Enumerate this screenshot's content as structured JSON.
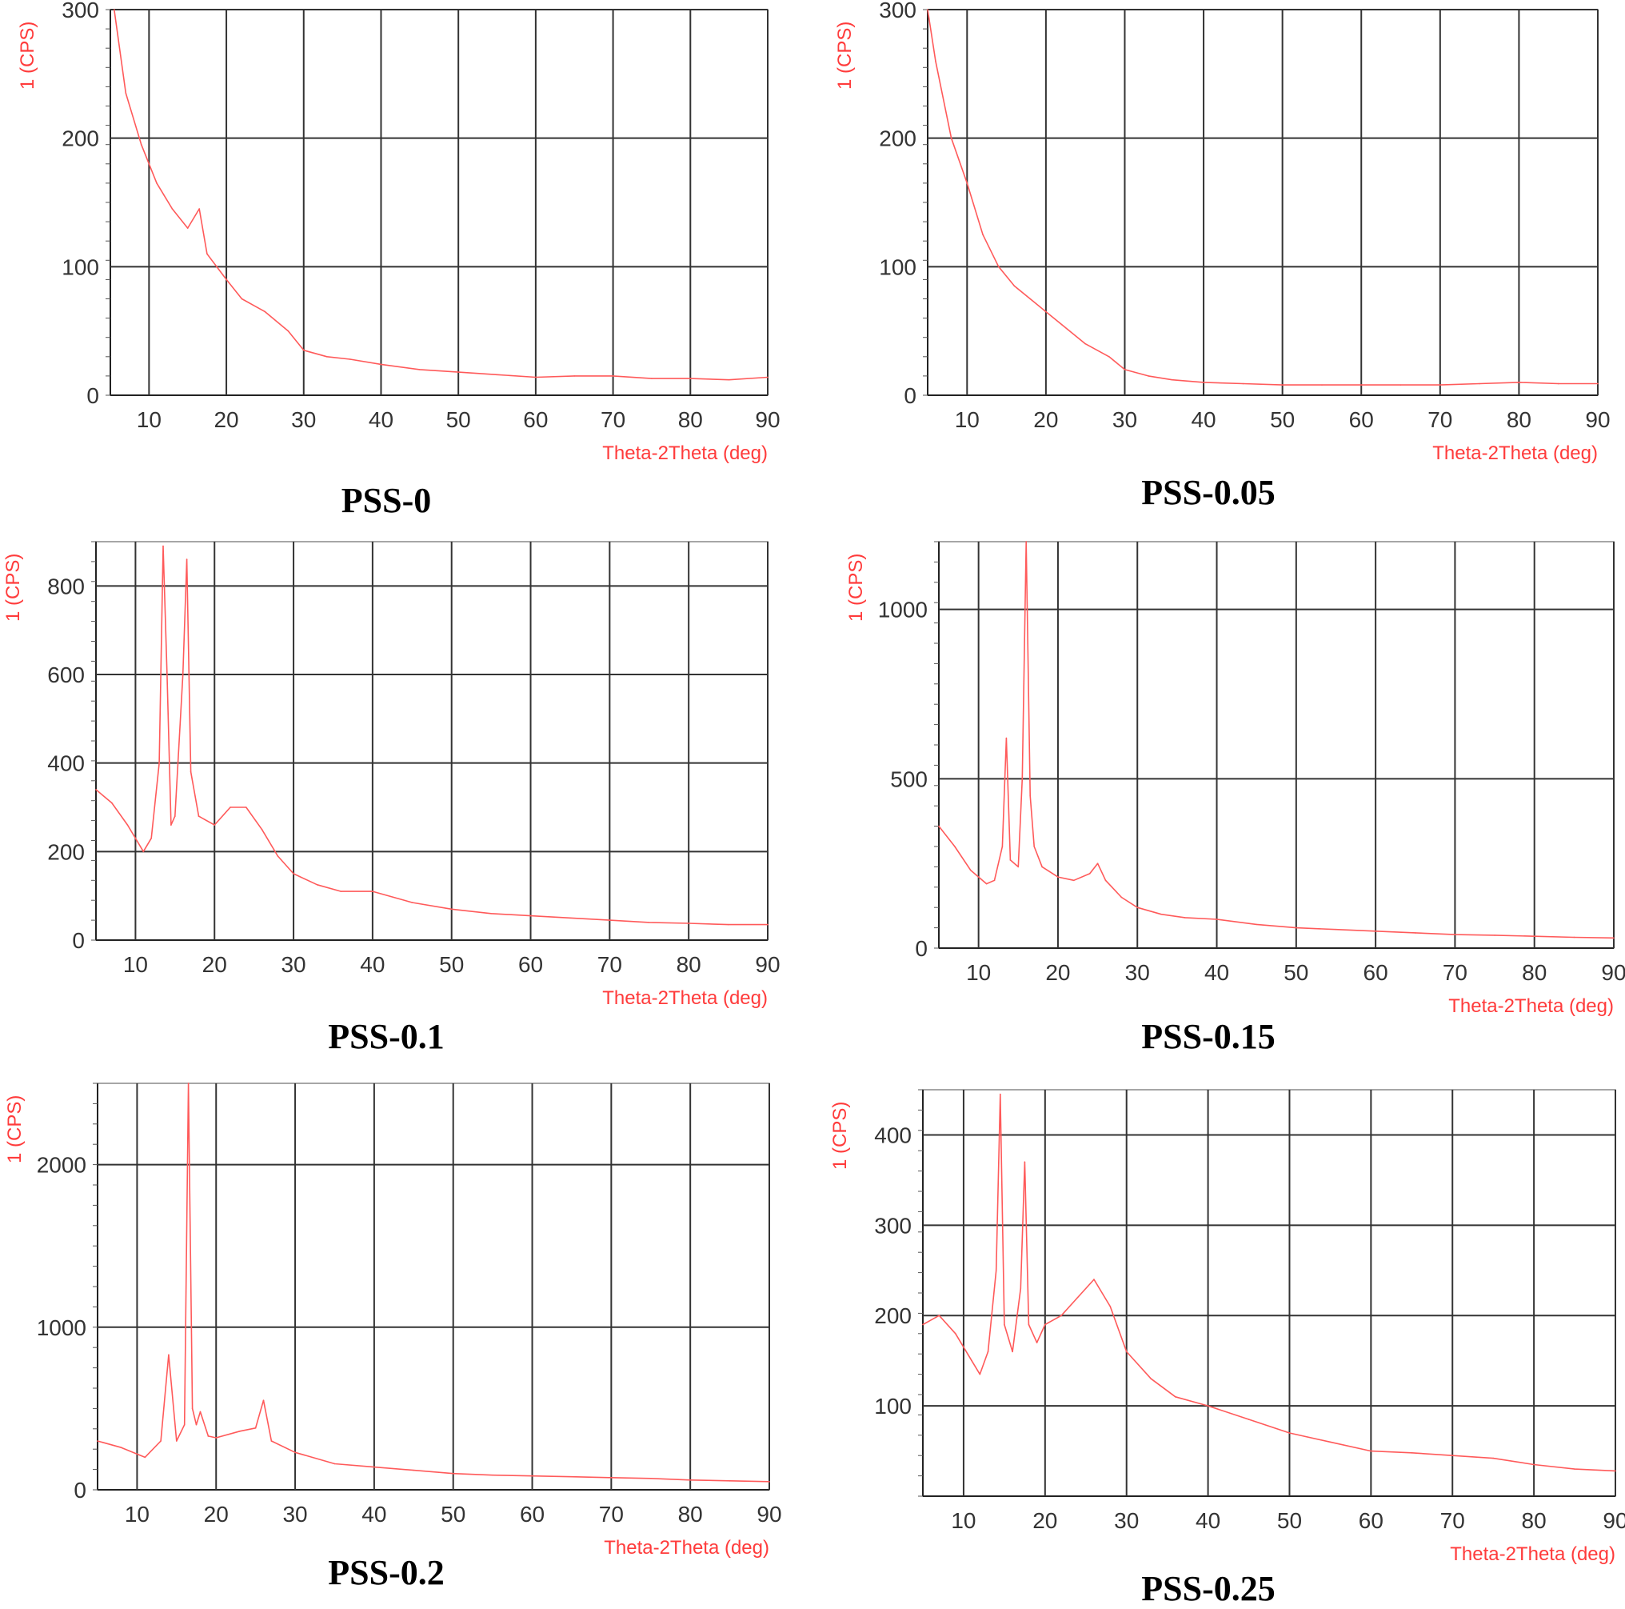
{
  "chart_data": [
    {
      "type": "line",
      "caption": "PSS-0",
      "ylabel": "1 (CPS)",
      "xlabel": "Theta-2Theta (deg)",
      "xlim": [
        5,
        90
      ],
      "ylim": [
        0,
        300
      ],
      "xticks": [
        10,
        20,
        30,
        40,
        50,
        60,
        70,
        80,
        90
      ],
      "yticks": [
        0,
        100,
        200,
        300
      ],
      "grid": true,
      "series": [
        {
          "x": [
            5.5,
            7,
            9,
            11,
            13,
            15,
            16.5,
            17.5,
            20,
            22,
            25,
            28,
            30,
            33,
            36,
            40,
            45,
            50,
            55,
            60,
            65,
            70,
            75,
            80,
            85,
            90
          ],
          "y": [
            300,
            235,
            195,
            165,
            145,
            130,
            145,
            110,
            90,
            75,
            65,
            50,
            35,
            30,
            28,
            24,
            20,
            18,
            16,
            14,
            15,
            15,
            13,
            13,
            12,
            14
          ]
        }
      ]
    },
    {
      "type": "line",
      "caption": "PSS-0.05",
      "ylabel": "1 (CPS)",
      "xlabel": "Theta-2Theta (deg)",
      "xlim": [
        5,
        90
      ],
      "ylim": [
        0,
        300
      ],
      "xticks": [
        10,
        20,
        30,
        40,
        50,
        60,
        70,
        80,
        90
      ],
      "yticks": [
        0,
        100,
        200,
        300
      ],
      "grid": true,
      "series": [
        {
          "x": [
            5,
            6,
            8,
            10,
            12,
            14,
            16,
            18,
            20,
            22,
            25,
            28,
            30,
            33,
            36,
            40,
            45,
            50,
            55,
            60,
            65,
            70,
            75,
            80,
            85,
            90
          ],
          "y": [
            300,
            260,
            200,
            165,
            125,
            100,
            85,
            75,
            65,
            55,
            40,
            30,
            20,
            15,
            12,
            10,
            9,
            8,
            8,
            8,
            8,
            8,
            9,
            10,
            9,
            9
          ]
        }
      ]
    },
    {
      "type": "line",
      "caption": "PSS-0.1",
      "ylabel": "1 (CPS)",
      "xlabel": "Theta-2Theta (deg)",
      "xlim": [
        5,
        90
      ],
      "ylim": [
        0,
        900
      ],
      "xticks": [
        10,
        20,
        30,
        40,
        50,
        60,
        70,
        80,
        90
      ],
      "yticks": [
        0,
        200,
        400,
        600,
        800
      ],
      "grid": true,
      "series": [
        {
          "x": [
            5,
            7,
            9,
            11,
            12,
            13,
            13.5,
            14,
            14.5,
            15,
            16,
            16.5,
            17,
            18,
            20,
            22,
            24,
            26,
            28,
            30,
            33,
            36,
            40,
            45,
            50,
            55,
            60,
            65,
            70,
            75,
            80,
            85,
            90
          ],
          "y": [
            340,
            310,
            260,
            200,
            230,
            400,
            890,
            600,
            260,
            280,
            600,
            860,
            380,
            280,
            260,
            300,
            300,
            250,
            190,
            150,
            125,
            110,
            110,
            85,
            70,
            60,
            55,
            50,
            45,
            40,
            38,
            35,
            35
          ]
        }
      ]
    },
    {
      "type": "line",
      "caption": "PSS-0.15",
      "ylabel": "1 (CPS)",
      "xlabel": "Theta-2Theta (deg)",
      "xlim": [
        5,
        90
      ],
      "ylim": [
        0,
        1200
      ],
      "xticks": [
        10,
        20,
        30,
        40,
        50,
        60,
        70,
        80,
        90
      ],
      "yticks": [
        0,
        500,
        1000
      ],
      "grid": true,
      "series": [
        {
          "x": [
            5,
            7,
            9,
            11,
            12,
            13,
            13.5,
            14,
            15,
            15.5,
            16,
            16.5,
            17,
            18,
            20,
            22,
            24,
            25,
            26,
            28,
            30,
            33,
            36,
            40,
            45,
            50,
            55,
            60,
            65,
            70,
            75,
            80,
            85,
            90
          ],
          "y": [
            360,
            300,
            230,
            190,
            200,
            300,
            620,
            260,
            240,
            500,
            1200,
            450,
            300,
            240,
            210,
            200,
            220,
            250,
            200,
            150,
            120,
            100,
            90,
            85,
            70,
            60,
            55,
            50,
            45,
            40,
            38,
            35,
            32,
            30
          ]
        }
      ]
    },
    {
      "type": "line",
      "caption": "PSS-0.2",
      "ylabel": "1 (CPS)",
      "xlabel": "Theta-2Theta (deg)",
      "xlim": [
        5,
        90
      ],
      "ylim": [
        0,
        2500
      ],
      "xticks": [
        10,
        20,
        30,
        40,
        50,
        60,
        70,
        80,
        90
      ],
      "yticks": [
        0,
        1000,
        2000
      ],
      "grid": true,
      "series": [
        {
          "x": [
            5,
            8,
            11,
            13,
            14,
            15,
            16,
            16.5,
            17,
            17.5,
            18,
            19,
            20,
            23,
            25,
            26,
            27,
            30,
            35,
            40,
            45,
            50,
            55,
            60,
            65,
            70,
            75,
            80,
            85,
            90
          ],
          "y": [
            300,
            260,
            200,
            300,
            830,
            300,
            400,
            2500,
            500,
            400,
            480,
            330,
            320,
            360,
            380,
            550,
            300,
            230,
            160,
            140,
            120,
            100,
            90,
            85,
            80,
            75,
            70,
            60,
            55,
            50
          ]
        }
      ]
    },
    {
      "type": "line",
      "caption": "PSS-0.25",
      "ylabel": "1 (CPS)",
      "xlabel": "Theta-2Theta (deg)",
      "xlim": [
        5,
        90
      ],
      "ylim": [
        0,
        450
      ],
      "xticks": [
        10,
        20,
        30,
        40,
        50,
        60,
        70,
        80,
        90
      ],
      "yticks": [
        100,
        200,
        300,
        400
      ],
      "grid": true,
      "series": [
        {
          "x": [
            5,
            7,
            9,
            11,
            12,
            13,
            14,
            14.5,
            15,
            16,
            17,
            17.5,
            18,
            19,
            20,
            22,
            24,
            26,
            28,
            30,
            33,
            36,
            40,
            45,
            50,
            55,
            60,
            65,
            70,
            75,
            80,
            85,
            90
          ],
          "y": [
            190,
            200,
            180,
            150,
            135,
            160,
            250,
            445,
            190,
            160,
            230,
            370,
            190,
            170,
            190,
            200,
            220,
            240,
            210,
            160,
            130,
            110,
            100,
            85,
            70,
            60,
            50,
            48,
            45,
            42,
            35,
            30,
            28
          ]
        }
      ]
    }
  ]
}
